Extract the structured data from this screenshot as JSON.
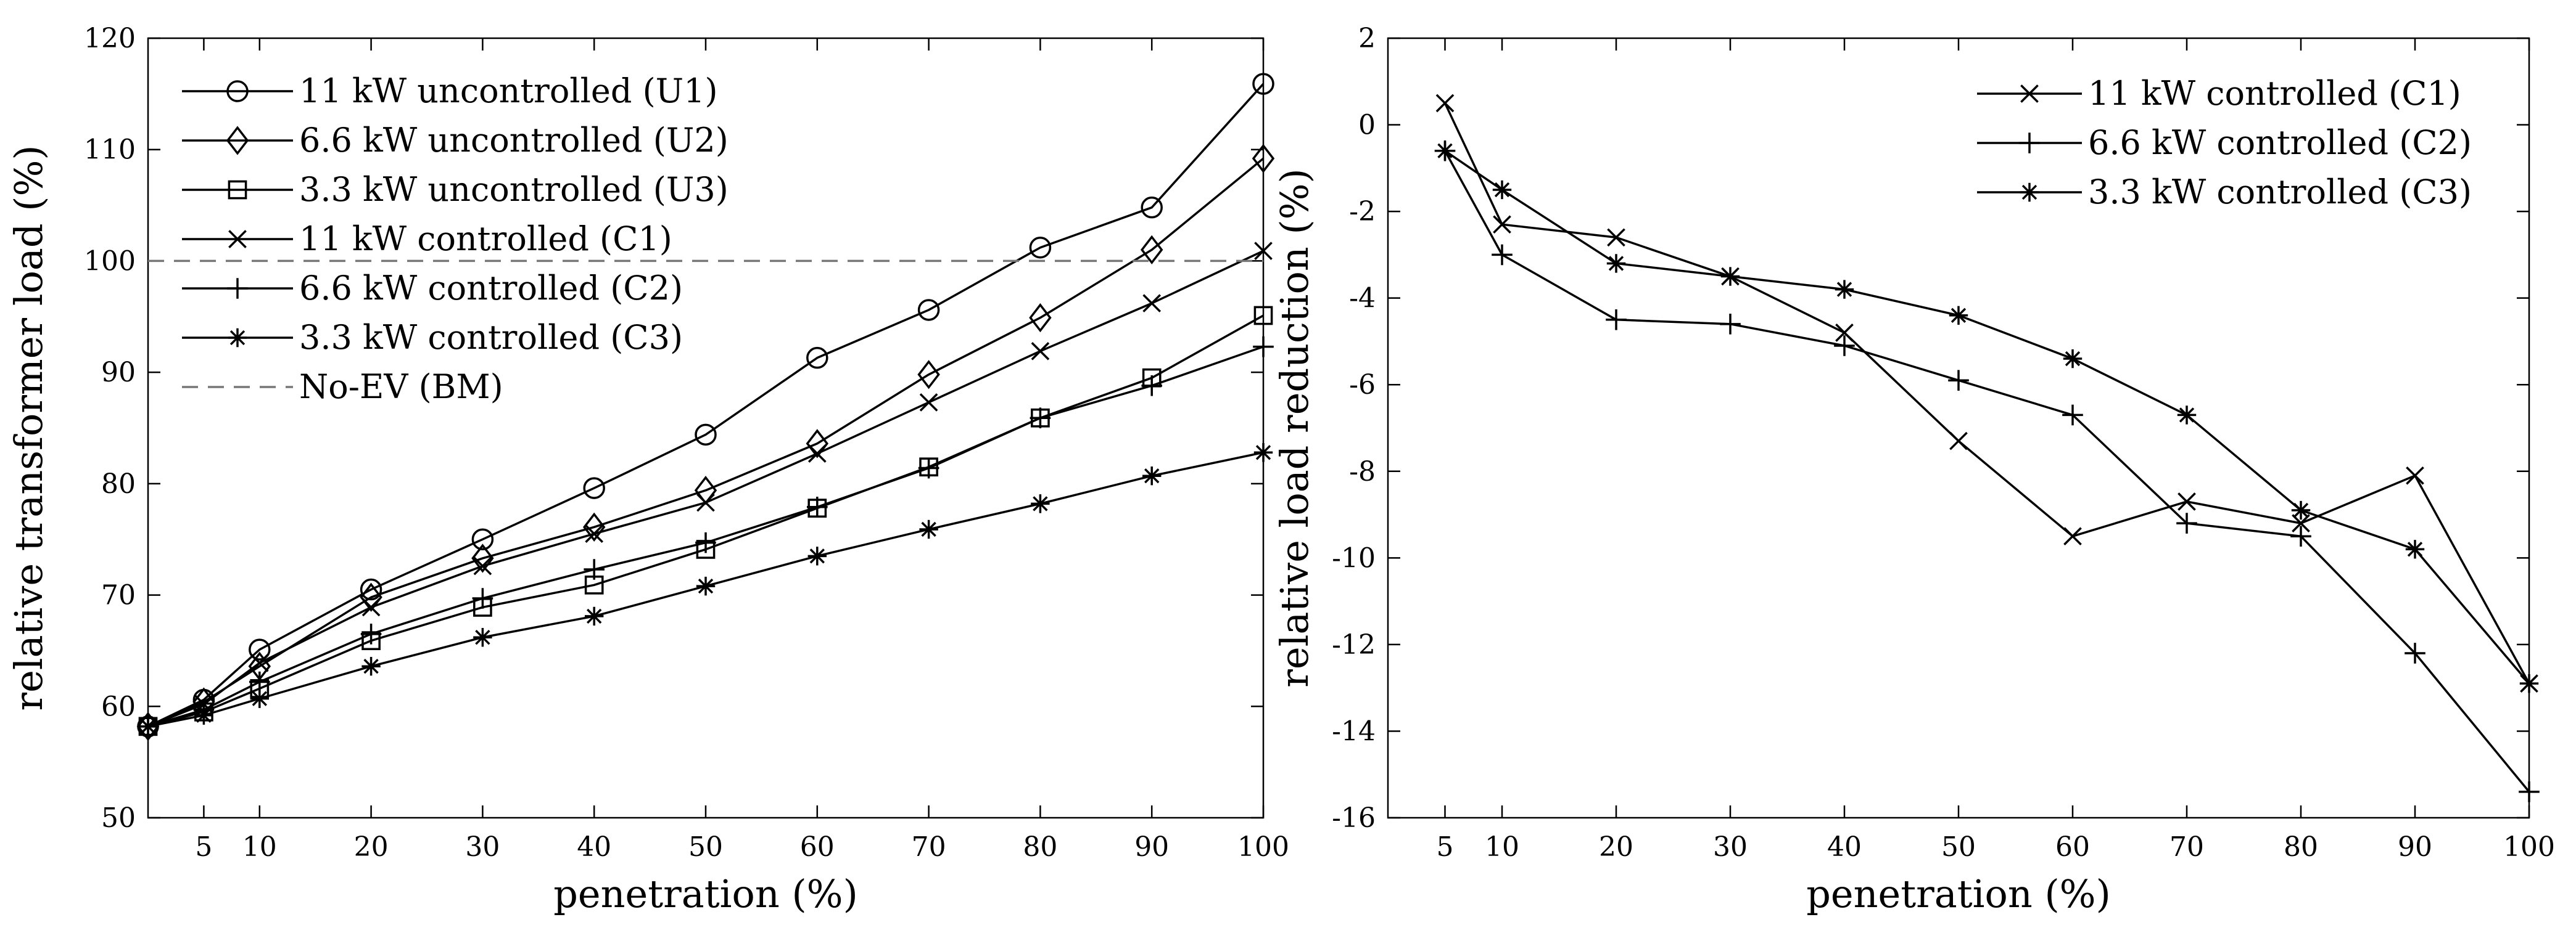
{
  "chart_data": [
    {
      "type": "line",
      "title": "",
      "xlabel": "penetration (%)",
      "ylabel": "relative transformer load (%)",
      "xlim": [
        0,
        100
      ],
      "ylim": [
        50,
        120
      ],
      "xticks": [
        5,
        10,
        20,
        30,
        40,
        50,
        60,
        70,
        80,
        90,
        100
      ],
      "yticks": [
        50,
        60,
        70,
        80,
        90,
        100,
        110,
        120
      ],
      "legend_position": "top-left",
      "x": [
        0,
        5,
        10,
        20,
        30,
        40,
        50,
        60,
        70,
        80,
        90,
        100
      ],
      "series": [
        {
          "name": "11 kW uncontrolled (U1)",
          "marker": "circle",
          "style": "solid",
          "values": [
            58.2,
            60.6,
            65.1,
            70.5,
            75.0,
            79.6,
            84.4,
            91.3,
            95.6,
            101.2,
            104.8,
            115.9
          ]
        },
        {
          "name": "6.6 kW uncontrolled (U2)",
          "marker": "diamond",
          "style": "solid",
          "values": [
            58.2,
            60.4,
            63.6,
            69.8,
            73.3,
            76.1,
            79.4,
            83.6,
            89.8,
            94.9,
            101.0,
            109.2
          ]
        },
        {
          "name": "3.3 kW uncontrolled (U3)",
          "marker": "square",
          "style": "solid",
          "values": [
            58.2,
            59.5,
            61.6,
            65.9,
            68.9,
            70.9,
            74.1,
            77.8,
            81.5,
            85.9,
            89.5,
            95.1
          ]
        },
        {
          "name": "11 kW controlled (C1)",
          "marker": "x",
          "style": "solid",
          "values": [
            58.2,
            60.2,
            63.9,
            68.9,
            72.6,
            75.5,
            78.3,
            82.7,
            87.3,
            91.9,
            96.2,
            100.9
          ]
        },
        {
          "name": "6.6 kW controlled (C2)",
          "marker": "plus",
          "style": "solid",
          "values": [
            58.2,
            59.7,
            62.2,
            66.5,
            69.7,
            72.3,
            74.7,
            77.9,
            81.4,
            85.9,
            88.8,
            92.3
          ]
        },
        {
          "name": "3.3 kW controlled (C3)",
          "marker": "star",
          "style": "solid",
          "values": [
            58.2,
            59.2,
            60.7,
            63.6,
            66.2,
            68.1,
            70.8,
            73.5,
            75.9,
            78.2,
            80.7,
            82.8
          ]
        },
        {
          "name": "No-EV (BM)",
          "marker": "none",
          "style": "dashed",
          "values": [
            100,
            100,
            100,
            100,
            100,
            100,
            100,
            100,
            100,
            100,
            100,
            100
          ]
        }
      ]
    },
    {
      "type": "line",
      "title": "",
      "xlabel": "penetration (%)",
      "ylabel": "relative load reduction (%)",
      "xlim": [
        0,
        100
      ],
      "ylim": [
        -16,
        2
      ],
      "xticks": [
        5,
        10,
        20,
        30,
        40,
        50,
        60,
        70,
        80,
        90,
        100
      ],
      "yticks": [
        -16,
        -14,
        -12,
        -10,
        -8,
        -6,
        -4,
        -2,
        0,
        2
      ],
      "legend_position": "top-right",
      "x": [
        5,
        10,
        20,
        30,
        40,
        50,
        60,
        70,
        80,
        90,
        100
      ],
      "series": [
        {
          "name": "11 kW controlled (C1)",
          "marker": "x",
          "style": "solid",
          "values": [
            0.5,
            -2.3,
            -2.6,
            -3.5,
            -4.8,
            -7.3,
            -9.5,
            -8.7,
            -9.2,
            -8.1,
            -12.9
          ]
        },
        {
          "name": "6.6 kW controlled (C2)",
          "marker": "plus",
          "style": "solid",
          "values": [
            -0.6,
            -3.0,
            -4.5,
            -4.6,
            -5.1,
            -5.9,
            -6.7,
            -9.2,
            -9.5,
            -12.2,
            -15.4
          ]
        },
        {
          "name": "3.3 kW controlled (C3)",
          "marker": "star",
          "style": "solid",
          "values": [
            -0.6,
            -1.5,
            -3.2,
            -3.5,
            -3.8,
            -4.4,
            -5.4,
            -6.7,
            -8.9,
            -9.8,
            -12.9
          ]
        }
      ]
    }
  ]
}
